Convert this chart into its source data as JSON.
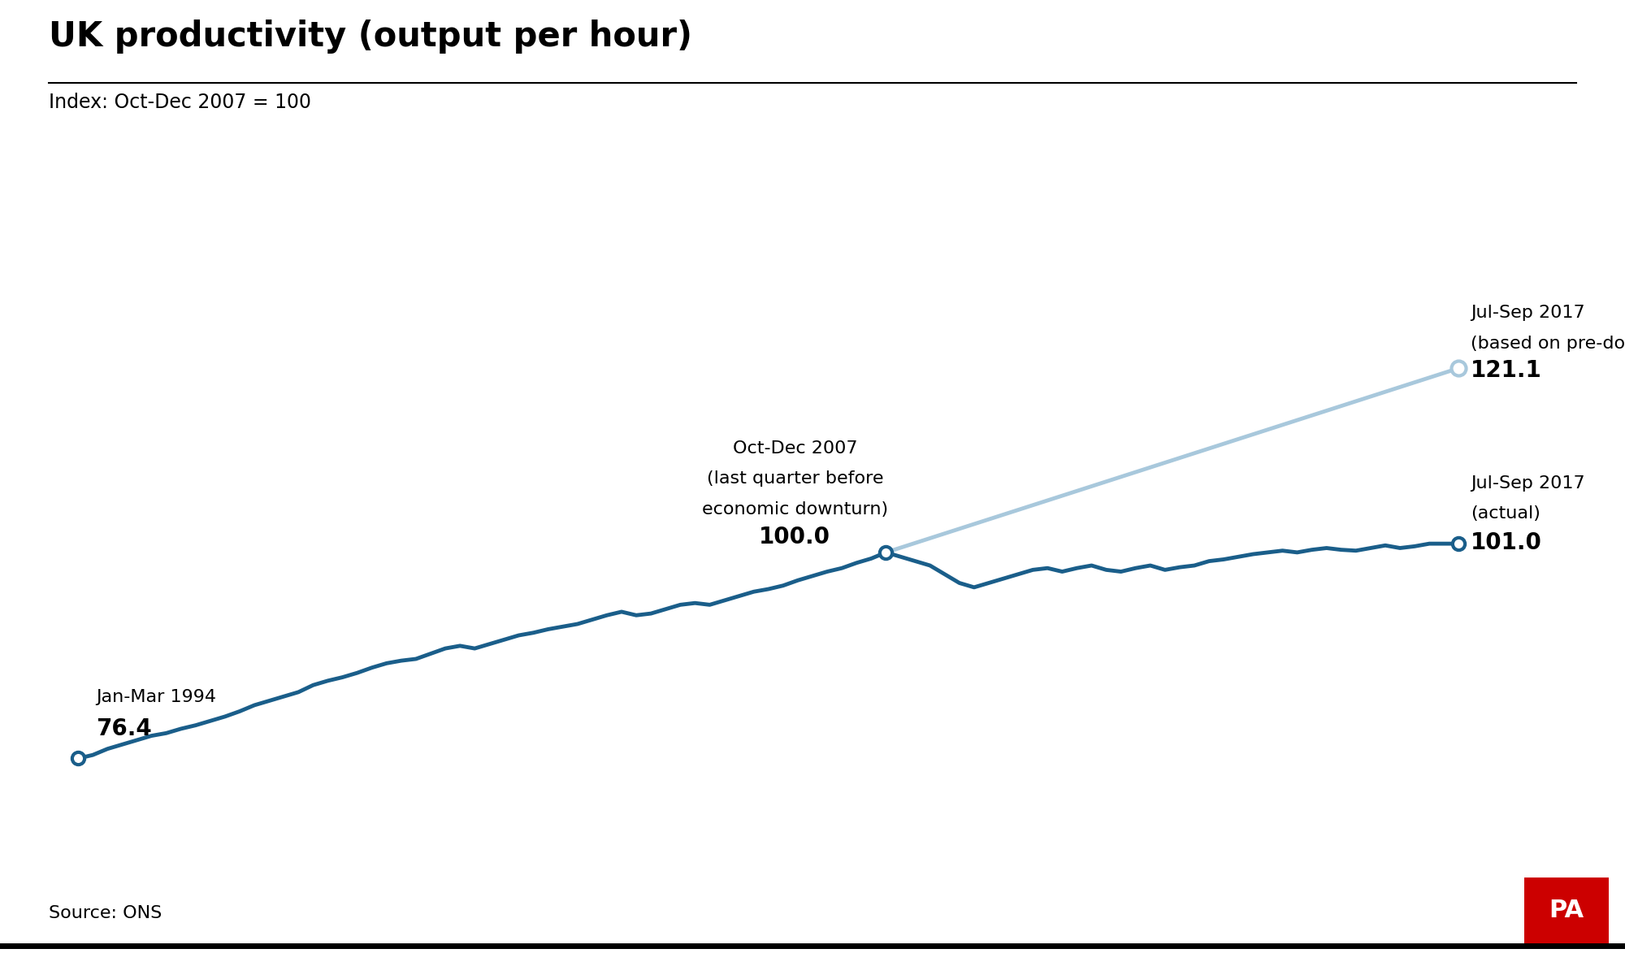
{
  "title": "UK productivity (output per hour)",
  "subtitle": "Index: Oct-Dec 2007 = 100",
  "source": "Source: ONS",
  "pa_logo_text": "PA",
  "pa_logo_color": "#cc0000",
  "line_color": "#1a5e8a",
  "trend_color": "#a8c8dc",
  "background_color": "#ffffff",
  "actual_data": [
    [
      1994.0,
      76.4
    ],
    [
      1994.25,
      76.8
    ],
    [
      1994.5,
      77.5
    ],
    [
      1994.75,
      78.0
    ],
    [
      1995.0,
      78.5
    ],
    [
      1995.25,
      79.0
    ],
    [
      1995.5,
      79.3
    ],
    [
      1995.75,
      79.8
    ],
    [
      1996.0,
      80.2
    ],
    [
      1996.25,
      80.7
    ],
    [
      1996.5,
      81.2
    ],
    [
      1996.75,
      81.8
    ],
    [
      1997.0,
      82.5
    ],
    [
      1997.25,
      83.0
    ],
    [
      1997.5,
      83.5
    ],
    [
      1997.75,
      84.0
    ],
    [
      1998.0,
      84.8
    ],
    [
      1998.25,
      85.3
    ],
    [
      1998.5,
      85.7
    ],
    [
      1998.75,
      86.2
    ],
    [
      1999.0,
      86.8
    ],
    [
      1999.25,
      87.3
    ],
    [
      1999.5,
      87.6
    ],
    [
      1999.75,
      87.8
    ],
    [
      2000.0,
      88.4
    ],
    [
      2000.25,
      89.0
    ],
    [
      2000.5,
      89.3
    ],
    [
      2000.75,
      89.0
    ],
    [
      2001.0,
      89.5
    ],
    [
      2001.25,
      90.0
    ],
    [
      2001.5,
      90.5
    ],
    [
      2001.75,
      90.8
    ],
    [
      2002.0,
      91.2
    ],
    [
      2002.25,
      91.5
    ],
    [
      2002.5,
      91.8
    ],
    [
      2002.75,
      92.3
    ],
    [
      2003.0,
      92.8
    ],
    [
      2003.25,
      93.2
    ],
    [
      2003.5,
      92.8
    ],
    [
      2003.75,
      93.0
    ],
    [
      2004.0,
      93.5
    ],
    [
      2004.25,
      94.0
    ],
    [
      2004.5,
      94.2
    ],
    [
      2004.75,
      94.0
    ],
    [
      2005.0,
      94.5
    ],
    [
      2005.25,
      95.0
    ],
    [
      2005.5,
      95.5
    ],
    [
      2005.75,
      95.8
    ],
    [
      2006.0,
      96.2
    ],
    [
      2006.25,
      96.8
    ],
    [
      2006.5,
      97.3
    ],
    [
      2006.75,
      97.8
    ],
    [
      2007.0,
      98.2
    ],
    [
      2007.25,
      98.8
    ],
    [
      2007.5,
      99.3
    ],
    [
      2007.75,
      100.0
    ],
    [
      2008.0,
      99.5
    ],
    [
      2008.25,
      99.0
    ],
    [
      2008.5,
      98.5
    ],
    [
      2008.75,
      97.5
    ],
    [
      2009.0,
      96.5
    ],
    [
      2009.25,
      96.0
    ],
    [
      2009.5,
      96.5
    ],
    [
      2009.75,
      97.0
    ],
    [
      2010.0,
      97.5
    ],
    [
      2010.25,
      98.0
    ],
    [
      2010.5,
      98.2
    ],
    [
      2010.75,
      97.8
    ],
    [
      2011.0,
      98.2
    ],
    [
      2011.25,
      98.5
    ],
    [
      2011.5,
      98.0
    ],
    [
      2011.75,
      97.8
    ],
    [
      2012.0,
      98.2
    ],
    [
      2012.25,
      98.5
    ],
    [
      2012.5,
      98.0
    ],
    [
      2012.75,
      98.3
    ],
    [
      2013.0,
      98.5
    ],
    [
      2013.25,
      99.0
    ],
    [
      2013.5,
      99.2
    ],
    [
      2013.75,
      99.5
    ],
    [
      2014.0,
      99.8
    ],
    [
      2014.25,
      100.0
    ],
    [
      2014.5,
      100.2
    ],
    [
      2014.75,
      100.0
    ],
    [
      2015.0,
      100.3
    ],
    [
      2015.25,
      100.5
    ],
    [
      2015.5,
      100.3
    ],
    [
      2015.75,
      100.2
    ],
    [
      2016.0,
      100.5
    ],
    [
      2016.25,
      100.8
    ],
    [
      2016.5,
      100.5
    ],
    [
      2016.75,
      100.7
    ],
    [
      2017.0,
      101.0
    ],
    [
      2017.25,
      101.0
    ],
    [
      2017.5,
      101.0
    ]
  ],
  "trend_data": [
    [
      2007.75,
      100.0
    ],
    [
      2017.5,
      121.1
    ]
  ],
  "xlim": [
    1993.5,
    2019.5
  ],
  "ylim": [
    65,
    132
  ],
  "title_fontsize": 30,
  "subtitle_fontsize": 17,
  "annotation_fontsize": 16,
  "annotation_value_fontsize": 20,
  "source_fontsize": 16
}
